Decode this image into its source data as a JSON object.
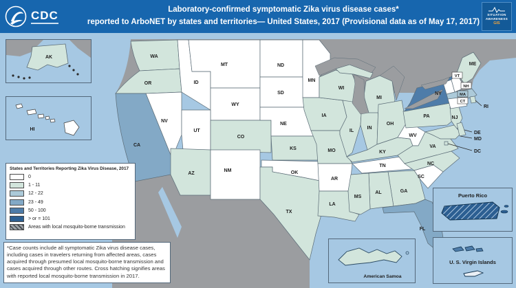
{
  "header": {
    "title_line1": "Laboratory-confirmed symptomatic Zika virus disease cases*",
    "title_line2": "reported to ArboNET by states and territories— United States, 2017 (Provisional data as of May 17, 2017)",
    "cdc_logo_text": "CDC",
    "gis_logo": {
      "line1": "SITUATION",
      "line2": "AWARENESS",
      "line3": "GIS"
    },
    "background_color": "#1766ae"
  },
  "legend": {
    "title": "States and Territories Reporting Zika Virus Disease, 2017",
    "items": [
      {
        "label": "0",
        "color": "#ffffff"
      },
      {
        "label": "1 - 11",
        "color": "#d2e5dc"
      },
      {
        "label": "12 - 22",
        "color": "#accad9"
      },
      {
        "label": "23 - 49",
        "color": "#83a9c6"
      },
      {
        "label": "50 - 100",
        "color": "#4e7ca9"
      },
      {
        "label": "> or = 101",
        "color": "#2c5f92"
      }
    ],
    "hatch_label": "Areas with local mosquito-borne transmission"
  },
  "footnote": "*Case counts include all symptomatic Zika virus disease cases, including cases in travelers returning from affected areas, cases acquired through presumed local mosquito-borne transmission and cases acquired through other routes. Cross hatching signifies areas with reported local mosquito-borne transmission in 2017.",
  "map": {
    "water_color": "#a6c8e3",
    "other_land_color": "#9b9da0",
    "border_color": "#5a6b76",
    "states": [
      {
        "abbr": "WA",
        "category": 1
      },
      {
        "abbr": "OR",
        "category": 1
      },
      {
        "abbr": "CA",
        "category": 3
      },
      {
        "abbr": "NV",
        "category": 0
      },
      {
        "abbr": "ID",
        "category": 0
      },
      {
        "abbr": "MT",
        "category": 0
      },
      {
        "abbr": "WY",
        "category": 0
      },
      {
        "abbr": "UT",
        "category": 0
      },
      {
        "abbr": "CO",
        "category": 1
      },
      {
        "abbr": "AZ",
        "category": 1
      },
      {
        "abbr": "NM",
        "category": 0
      },
      {
        "abbr": "ND",
        "category": 0
      },
      {
        "abbr": "SD",
        "category": 0
      },
      {
        "abbr": "NE",
        "category": 0
      },
      {
        "abbr": "KS",
        "category": 1
      },
      {
        "abbr": "OK",
        "category": 0
      },
      {
        "abbr": "TX",
        "category": 1
      },
      {
        "abbr": "MN",
        "category": 0
      },
      {
        "abbr": "IA",
        "category": 1
      },
      {
        "abbr": "MO",
        "category": 1
      },
      {
        "abbr": "AR",
        "category": 0
      },
      {
        "abbr": "LA",
        "category": 1
      },
      {
        "abbr": "WI",
        "category": 1
      },
      {
        "abbr": "IL",
        "category": 1
      },
      {
        "abbr": "IN",
        "category": 1
      },
      {
        "abbr": "MI",
        "category": 1
      },
      {
        "abbr": "OH",
        "category": 1
      },
      {
        "abbr": "KY",
        "category": 1
      },
      {
        "abbr": "TN",
        "category": 0
      },
      {
        "abbr": "WV",
        "category": 0
      },
      {
        "abbr": "VA",
        "category": 1
      },
      {
        "abbr": "PA",
        "category": 1
      },
      {
        "abbr": "NY",
        "category": 4
      },
      {
        "abbr": "NJ",
        "category": 1
      },
      {
        "abbr": "MD",
        "category": 1
      },
      {
        "abbr": "DE",
        "category": 1
      },
      {
        "abbr": "DC",
        "category": 1
      },
      {
        "abbr": "NC",
        "category": 1
      },
      {
        "abbr": "SC",
        "category": 0
      },
      {
        "abbr": "GA",
        "category": 1
      },
      {
        "abbr": "AL",
        "category": 1
      },
      {
        "abbr": "MS",
        "category": 1
      },
      {
        "abbr": "FL",
        "category": 3
      },
      {
        "abbr": "VT",
        "category": 0
      },
      {
        "abbr": "NH",
        "category": 0
      },
      {
        "abbr": "ME",
        "category": 1
      },
      {
        "abbr": "MA",
        "category": 2
      },
      {
        "abbr": "CT",
        "category": 0
      },
      {
        "abbr": "RI",
        "category": 1
      }
    ]
  },
  "insets": {
    "alaska": {
      "label": "AK",
      "category": 1
    },
    "hawaii": {
      "label": "HI",
      "category": 0
    },
    "puerto_rico": {
      "title": "Puerto Rico",
      "category": 5,
      "hatched": true
    },
    "usvi": {
      "title": "U. S. Virgin Islands",
      "category": 4
    },
    "american_samoa": {
      "title": "American Samoa",
      "category": 1
    }
  }
}
